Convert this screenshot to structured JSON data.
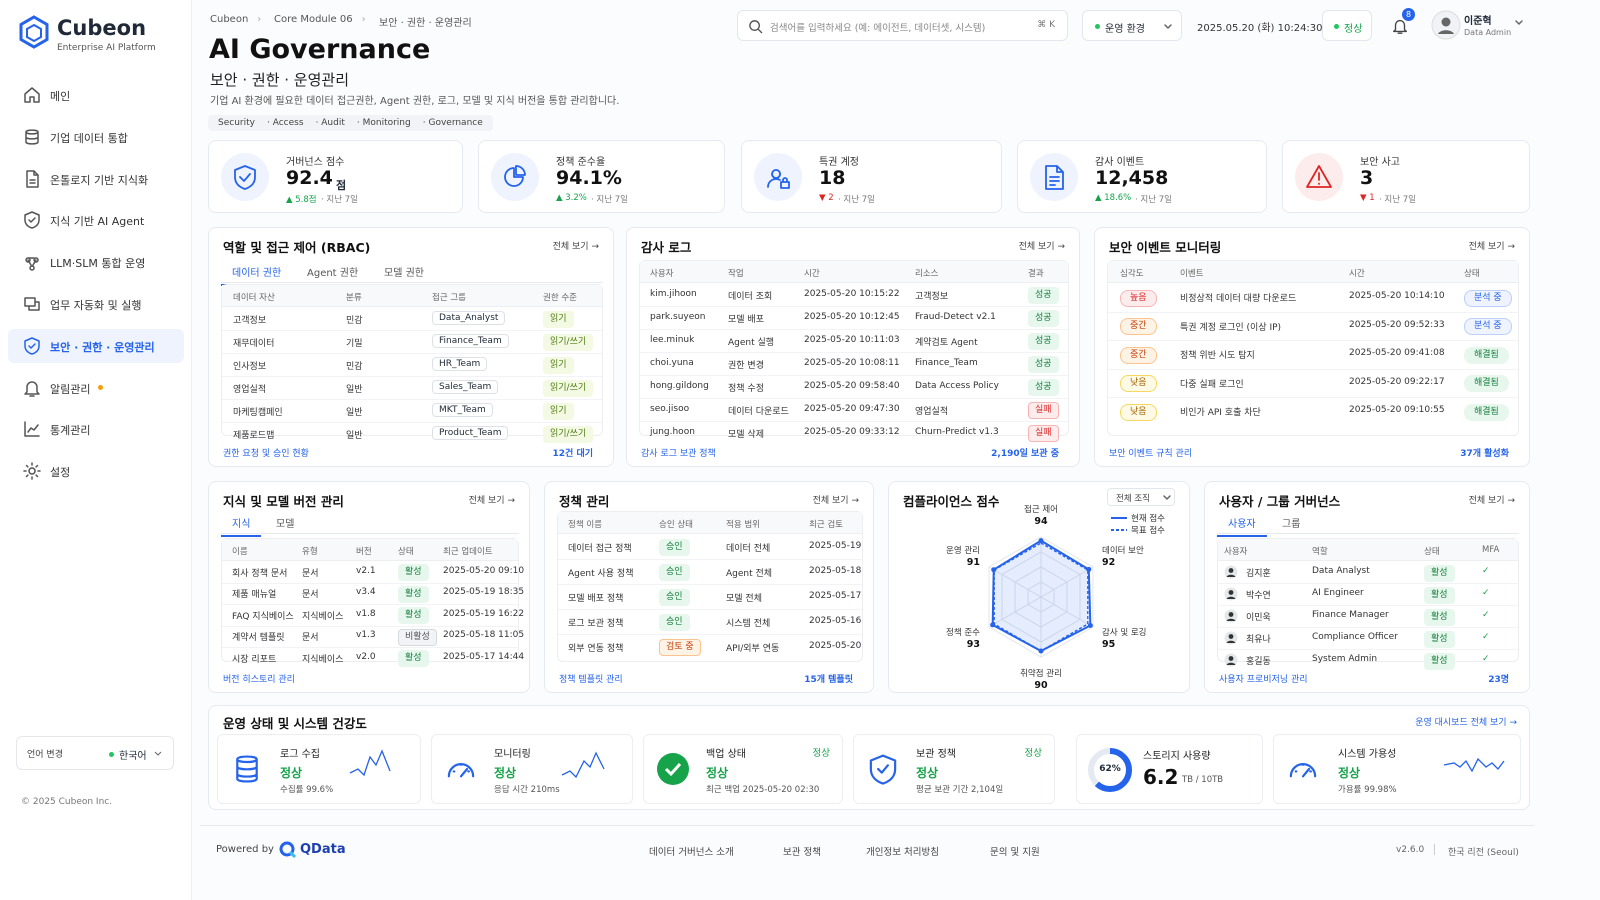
{
  "sidebar": {
    "brand": "Cubeon",
    "tagline": "Enterprise AI Platform",
    "nav": [
      "메인",
      "기업 데이터 통합",
      "온톨로지 기반 지식화",
      "지식 기반 AI Agent",
      "LLM·SLM 통합 운영",
      "업무 자동화 및 실행",
      "보안 · 권한 · 운영관리",
      "알림관리",
      "통계관리",
      "설정"
    ],
    "active": 6,
    "dot_item": 7,
    "language_label": "언어 변경",
    "language": "한국어",
    "copyright": "© 2025 Cubeon Inc."
  },
  "header": {
    "breadcrumb": [
      "Cubeon",
      "Core Module 06",
      "보안 · 권한 · 운영관리"
    ],
    "title": "AI Governance",
    "subtitle": "보안 · 권한 · 운영관리",
    "description": "기업 AI 환경에 필요한 데이터 접근권한, Agent 권한, 로그, 모델 및 지식 버전을 통합 관리합니다.",
    "tags": [
      "Security",
      "Access",
      "Audit",
      "Monitoring",
      "Governance"
    ],
    "search_placeholder": "검색어를 입력하세요 (예: 에이전트, 데이터셋, 시스템)",
    "search_shortcut": "⌘ K",
    "environment": "운영 환경",
    "datetime": "2025.05.20 (화) 10:24:30",
    "status": "정상",
    "notifications": 8,
    "user_name": "이준혁",
    "user_role": "Data Admin"
  },
  "kpis": [
    {
      "label": "거버넌스 점수",
      "value": 92.4,
      "unit": "점",
      "change": "5.8점",
      "trend": "up",
      "period": "지난 7일"
    },
    {
      "label": "정책 준수율",
      "value": "94.1%",
      "change": "3.2%",
      "trend": "up",
      "period": "지난 7일"
    },
    {
      "label": "특권 계정",
      "value": 18,
      "change": "2",
      "trend": "down",
      "period": "지난 7일"
    },
    {
      "label": "감사 이벤트",
      "value": "12,458",
      "change": "18.6%",
      "trend": "up",
      "period": "지난 7일"
    },
    {
      "label": "보안 사고",
      "value": 3,
      "change": "1",
      "trend": "down",
      "period": "지난 7일"
    }
  ],
  "rbac": {
    "title": "역할 및 접근 제어 (RBAC)",
    "view_all": "전체 보기",
    "tabs": [
      "데이터 권한",
      "Agent 권한",
      "모델 권한"
    ],
    "active_tab": 0,
    "columns": [
      "데이터 자산",
      "분류",
      "접근 그룹",
      "권한 수준"
    ],
    "rows": [
      [
        "고객정보",
        "민감",
        "Data_Analyst",
        "읽기"
      ],
      [
        "재무데이터",
        "기밀",
        "Finance_Team",
        "읽기/쓰기"
      ],
      [
        "인사정보",
        "민감",
        "HR_Team",
        "읽기"
      ],
      [
        "영업실적",
        "일반",
        "Sales_Team",
        "읽기/쓰기"
      ],
      [
        "마케팅캠페인",
        "일반",
        "MKT_Team",
        "읽기"
      ],
      [
        "제품로드맵",
        "일반",
        "Product_Team",
        "읽기/쓰기"
      ]
    ],
    "badge_tones": {
      "3": [
        "lime",
        "lime",
        "lime",
        "lime",
        "lime",
        "lime"
      ]
    },
    "footer_link": "권한 요청 및 승인 현황",
    "footer_count": "12건 대기"
  },
  "audit": {
    "title": "감사 로그",
    "view_all": "전체 보기",
    "columns": [
      "사용자",
      "작업",
      "시간",
      "리소스",
      "결과"
    ],
    "rows": [
      [
        "kim.jihoon",
        "데이터 조회",
        "2025-05-20 10:15:22",
        "고객정보",
        "성공"
      ],
      [
        "park.suyeon",
        "모델 배포",
        "2025-05-20 10:12:45",
        "Fraud-Detect v2.1",
        "성공"
      ],
      [
        "lee.minuk",
        "Agent 실행",
        "2025-05-20 10:11:03",
        "계약검토 Agent",
        "성공"
      ],
      [
        "choi.yuna",
        "권한 변경",
        "2025-05-20 10:08:11",
        "Finance_Team",
        "성공"
      ],
      [
        "hong.gildong",
        "정책 수정",
        "2025-05-20 09:58:40",
        "Data Access Policy",
        "성공"
      ],
      [
        "seo.jisoo",
        "데이터 다운로드",
        "2025-05-20 09:47:30",
        "영업실적",
        "실패"
      ],
      [
        "jung.hoon",
        "모델 삭제",
        "2025-05-20 09:33:12",
        "Churn-Predict v1.3",
        "실패"
      ]
    ],
    "badge_tones": {
      "4": [
        "green",
        "green",
        "green",
        "green",
        "green",
        "red",
        "red"
      ]
    },
    "footer_link": "감사 로그 보관 정책",
    "footer_count": "2,190일 보관 중"
  },
  "security": {
    "title": "보안 이벤트 모니터링",
    "view_all": "전체 보기",
    "columns": [
      "심각도",
      "이벤트",
      "시간",
      "상태"
    ],
    "rows": [
      [
        "높음",
        "비정상적 데이터 대량 다운로드",
        "2025-05-20 10:14:10",
        "분석 중"
      ],
      [
        "중간",
        "특권 계정 로그인 (이상 IP)",
        "2025-05-20 09:52:33",
        "분석 중"
      ],
      [
        "중간",
        "정책 위반 시도 탐지",
        "2025-05-20 09:41:08",
        "해결됨"
      ],
      [
        "낮음",
        "다중 실패 로그인",
        "2025-05-20 09:22:17",
        "해결됨"
      ],
      [
        "낮음",
        "비인가 API 호출 차단",
        "2025-05-20 09:10:55",
        "해결됨"
      ]
    ],
    "badge_tones": {
      "0": [
        "red",
        "orange",
        "orange",
        "yellow",
        "yellow"
      ],
      "3": [
        "blue",
        "blue",
        "green",
        "green",
        "green"
      ]
    },
    "footer_link": "보안 이벤트 규칙 관리",
    "footer_count": "37개 활성화"
  },
  "knowledge": {
    "title": "지식 및 모델 버전 관리",
    "view_all": "전체 보기",
    "tabs": [
      "지식",
      "모델"
    ],
    "active_tab": 0,
    "columns": [
      "이름",
      "유형",
      "버전",
      "상태",
      "최근 업데이트"
    ],
    "rows": [
      [
        "회사 정책 문서",
        "문서",
        "v2.1",
        "활성",
        "2025-05-20 09:10"
      ],
      [
        "제품 매뉴얼",
        "문서",
        "v3.4",
        "활성",
        "2025-05-19 18:35"
      ],
      [
        "FAQ 지식베이스",
        "지식베이스",
        "v1.8",
        "활성",
        "2025-05-19 16:22"
      ],
      [
        "계약서 템플릿",
        "문서",
        "v1.3",
        "비활성",
        "2025-05-18 11:05"
      ],
      [
        "시장 리포트",
        "지식베이스",
        "v2.0",
        "활성",
        "2025-05-17 14:44"
      ]
    ],
    "badge_tones": {
      "3": [
        "green",
        "green",
        "green",
        "gray",
        "green"
      ]
    },
    "footer_link": "버전 히스토리 관리"
  },
  "policy": {
    "title": "정책 관리",
    "view_all": "전체 보기",
    "columns": [
      "정책 이름",
      "승인 상태",
      "적용 범위",
      "최근 검토"
    ],
    "rows": [
      [
        "데이터 접근 정책",
        "승인",
        "데이터 전체",
        "2025-05-19"
      ],
      [
        "Agent 사용 정책",
        "승인",
        "Agent 전체",
        "2025-05-18"
      ],
      [
        "모델 배포 정책",
        "승인",
        "모델 전체",
        "2025-05-17"
      ],
      [
        "로그 보관 정책",
        "승인",
        "시스템 전체",
        "2025-05-16"
      ],
      [
        "외부 연동 정책",
        "검토 중",
        "API/외부 연동",
        "2025-05-20"
      ]
    ],
    "badge_tones": {
      "1": [
        "green",
        "green",
        "green",
        "green",
        "orange"
      ]
    },
    "footer_link": "정책 템플릿 관리",
    "footer_count": "15개 템플릿"
  },
  "users": {
    "title": "사용자 / 그룹 거버넌스",
    "view_all": "전체 보기",
    "tabs": [
      "사용자",
      "그룹"
    ],
    "active_tab": 0,
    "columns": [
      "사용자",
      "역할",
      "상태",
      "MFA"
    ],
    "rows": [
      [
        "김지훈",
        "Data Analyst",
        "활성",
        "✓"
      ],
      [
        "박수연",
        "AI Engineer",
        "활성",
        "✓"
      ],
      [
        "이민욱",
        "Finance Manager",
        "활성",
        "✓"
      ],
      [
        "최유나",
        "Compliance Officer",
        "활성",
        "✓"
      ],
      [
        "홍길동",
        "System Admin",
        "활성",
        "✓"
      ]
    ],
    "badge_tones": {
      "2": [
        "green",
        "green",
        "green",
        "green",
        "green"
      ]
    },
    "footer_link": "사용자 프로비저닝 관리",
    "footer_count": "23명"
  },
  "chart_data": {
    "type": "radar",
    "title": "컴플라이언스 점수",
    "filter": "전체 조직",
    "categories": [
      "접근 제어",
      "데이터 보안",
      "감사 및 로깅",
      "취약점 관리",
      "정책 준수",
      "운영 관리"
    ],
    "rlim": [
      0,
      100
    ],
    "series": [
      {
        "name": "현재 점수",
        "color": "#2563eb",
        "values": [
          94,
          92,
          95,
          90,
          93,
          91
        ]
      },
      {
        "name": "목표 점수",
        "color": "#2563eb",
        "dashed": true,
        "values": [
          90,
          90,
          90,
          90,
          90,
          90
        ]
      }
    ]
  },
  "ops": {
    "title": "운영 상태 및 시스템 건강도",
    "link": "운영 대시보드 전체 보기",
    "items": [
      {
        "label": "로그 수집",
        "status": "정상",
        "detail": "수집률 99.6%"
      },
      {
        "label": "모니터링",
        "status": "정상",
        "detail": "응답 시간 210ms"
      },
      {
        "label": "백업 상태",
        "badge": "정상",
        "status": "정상",
        "detail": "최근 백업 2025-05-20 02:30"
      },
      {
        "label": "보관 정책",
        "badge": "정상",
        "status": "정상",
        "detail": "평균 보관 기간 2,104일"
      },
      {
        "label": "스토리지 사용량",
        "value": "6.2",
        "unit": "TB / 10TB",
        "percent": 62,
        "percent_label": "62%"
      },
      {
        "label": "시스템 가용성",
        "status": "정상",
        "detail": "가용률 99.98%"
      }
    ]
  },
  "footer": {
    "powered_by": "Powered by",
    "logo": "QData",
    "links": [
      "데이터 거버넌스 소개",
      "보관 정책",
      "개인정보 처리방침",
      "문의 및 지원"
    ],
    "version": "v2.6.0",
    "region": "한국 리전 (Seoul)"
  }
}
